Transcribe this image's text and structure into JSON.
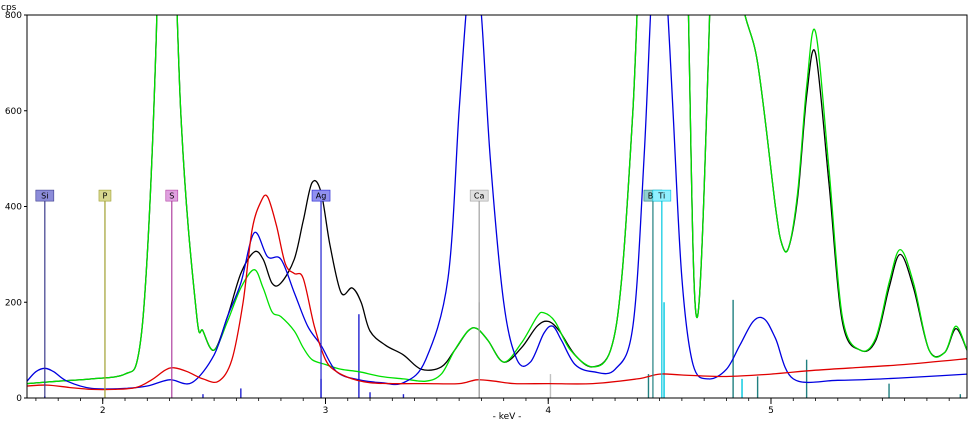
{
  "chart_data": {
    "type": "line",
    "y_unit": "cps",
    "x_unit": "- keV -",
    "xlim": [
      1.66,
      5.88
    ],
    "ylim": [
      0,
      800
    ],
    "x_ticks": [
      2,
      3,
      4,
      5
    ],
    "x_tick_labels": [
      "2",
      "3",
      "4",
      "5"
    ],
    "y_ticks": [
      0,
      200,
      400,
      600,
      800
    ],
    "y_tick_labels": [
      "0",
      "200",
      "400",
      "600",
      "800"
    ],
    "grid": false,
    "element_markers": [
      {
        "symbol": "Si",
        "energy": 1.74,
        "height": 405,
        "color": "#3b3b8c",
        "label_bg": "#8c8cd9"
      },
      {
        "symbol": "P",
        "energy": 2.01,
        "height": 405,
        "color": "#a0a030",
        "label_bg": "#d8d890"
      },
      {
        "symbol": "S",
        "energy": 2.31,
        "height": 405,
        "color": "#b040a0",
        "label_bg": "#e0a0e0"
      },
      {
        "symbol": "Ag",
        "energy": 2.98,
        "height": 405,
        "color": "#2020d0",
        "label_bg": "#9090f0"
      },
      {
        "symbol": "Ca",
        "energy": 3.69,
        "height": 405,
        "color": "#a0a0a0",
        "label_bg": "#e0e0e0"
      },
      {
        "symbol": "Ba",
        "energy": 4.47,
        "height": 405,
        "color": "#208080",
        "label_bg": "#90d0d0"
      },
      {
        "symbol": "Ti",
        "energy": 4.51,
        "height": 405,
        "color": "#00c8e0",
        "label_bg": "#90f0ff"
      }
    ],
    "sticks": [
      {
        "energy": 1.74,
        "height": 4,
        "color": "#2020d0"
      },
      {
        "energy": 2.45,
        "height": 8,
        "color": "#2020d0"
      },
      {
        "energy": 2.62,
        "height": 20,
        "color": "#2020d0"
      },
      {
        "energy": 2.98,
        "height": 40,
        "color": "#2020d0"
      },
      {
        "energy": 3.15,
        "height": 175,
        "color": "#2020d0"
      },
      {
        "energy": 3.2,
        "height": 12,
        "color": "#2020d0"
      },
      {
        "energy": 3.35,
        "height": 8,
        "color": "#2020d0"
      },
      {
        "energy": 3.69,
        "height": 200,
        "color": "#c0c0c0"
      },
      {
        "energy": 4.01,
        "height": 50,
        "color": "#c0c0c0"
      },
      {
        "energy": 4.45,
        "height": 50,
        "color": "#208080"
      },
      {
        "energy": 4.52,
        "height": 200,
        "color": "#00c8e0"
      },
      {
        "energy": 4.83,
        "height": 205,
        "color": "#208080"
      },
      {
        "energy": 4.87,
        "height": 40,
        "color": "#00c8e0"
      },
      {
        "energy": 4.94,
        "height": 45,
        "color": "#208080"
      },
      {
        "energy": 5.16,
        "height": 80,
        "color": "#208080"
      },
      {
        "energy": 5.53,
        "height": 30,
        "color": "#208080"
      },
      {
        "energy": 5.85,
        "height": 8,
        "color": "#208080"
      }
    ],
    "series": [
      {
        "color": "#000000",
        "x": [
          1.66,
          1.8,
          1.95,
          2.1,
          2.16,
          2.2,
          2.24,
          2.28,
          2.35,
          2.42,
          2.45,
          2.5,
          2.56,
          2.62,
          2.68,
          2.72,
          2.76,
          2.8,
          2.86,
          2.9,
          2.94,
          2.98,
          3.02,
          3.07,
          3.12,
          3.16,
          3.2,
          3.27,
          3.35,
          3.43,
          3.52,
          3.58,
          3.64,
          3.68,
          3.73,
          3.8,
          3.88,
          3.95,
          4.0,
          4.05,
          4.12,
          4.2,
          4.28,
          4.33,
          4.38,
          4.45,
          4.6,
          4.67,
          4.78,
          4.85,
          4.94,
          5.02,
          5.05,
          5.08,
          5.12,
          5.16,
          5.2,
          5.26,
          5.32,
          5.4,
          5.47,
          5.53,
          5.58,
          5.64,
          5.71,
          5.78,
          5.83,
          5.88
        ],
        "y": [
          30,
          35,
          40,
          50,
          90,
          300,
          750,
          1500,
          600,
          180,
          140,
          100,
          170,
          260,
          305,
          290,
          240,
          240,
          290,
          370,
          450,
          430,
          320,
          220,
          230,
          200,
          140,
          110,
          90,
          60,
          65,
          100,
          140,
          145,
          120,
          75,
          105,
          150,
          160,
          140,
          90,
          65,
          100,
          250,
          600,
          1200,
          1200,
          170,
          1500,
          900,
          700,
          400,
          320,
          315,
          420,
          630,
          720,
          450,
          160,
          100,
          120,
          230,
          300,
          230,
          100,
          95,
          145,
          100
        ]
      },
      {
        "color": "#00e000",
        "x": [
          1.66,
          1.8,
          1.95,
          2.1,
          2.16,
          2.2,
          2.24,
          2.28,
          2.35,
          2.42,
          2.45,
          2.5,
          2.56,
          2.62,
          2.68,
          2.72,
          2.76,
          2.8,
          2.86,
          2.9,
          2.94,
          3.0,
          3.07,
          3.15,
          3.25,
          3.35,
          3.45,
          3.52,
          3.58,
          3.64,
          3.68,
          3.73,
          3.8,
          3.88,
          3.95,
          3.98,
          4.03,
          4.1,
          4.2,
          4.28,
          4.33,
          4.38,
          4.45,
          4.6,
          4.67,
          4.78,
          4.85,
          4.94,
          5.02,
          5.05,
          5.08,
          5.12,
          5.16,
          5.2,
          5.26,
          5.32,
          5.4,
          5.47,
          5.53,
          5.58,
          5.64,
          5.71,
          5.78,
          5.83,
          5.88
        ],
        "y": [
          30,
          35,
          40,
          50,
          90,
          300,
          750,
          1500,
          600,
          180,
          140,
          100,
          160,
          230,
          268,
          230,
          180,
          170,
          140,
          105,
          80,
          70,
          60,
          55,
          45,
          40,
          35,
          50,
          100,
          140,
          145,
          120,
          75,
          115,
          170,
          178,
          160,
          100,
          65,
          100,
          250,
          600,
          1200,
          1200,
          170,
          1500,
          900,
          700,
          400,
          320,
          315,
          430,
          650,
          765,
          480,
          170,
          100,
          125,
          240,
          310,
          240,
          100,
          95,
          150,
          100
        ]
      },
      {
        "color": "#0000e0",
        "x": [
          1.66,
          1.7,
          1.74,
          1.78,
          1.84,
          1.95,
          2.1,
          2.2,
          2.3,
          2.4,
          2.5,
          2.56,
          2.62,
          2.68,
          2.74,
          2.8,
          2.86,
          2.92,
          2.98,
          3.05,
          3.15,
          3.25,
          3.35,
          3.45,
          3.55,
          3.6,
          3.64,
          3.67,
          3.7,
          3.74,
          3.8,
          3.86,
          3.92,
          3.98,
          4.02,
          4.06,
          4.12,
          4.2,
          4.3,
          4.38,
          4.43,
          4.47,
          4.5,
          4.52,
          4.56,
          4.6,
          4.65,
          4.72,
          4.8,
          4.86,
          4.92,
          4.97,
          5.02,
          5.1,
          5.3,
          5.5,
          5.7,
          5.88
        ],
        "y": [
          35,
          55,
          62,
          55,
          35,
          20,
          20,
          25,
          38,
          32,
          90,
          170,
          240,
          345,
          295,
          290,
          220,
          150,
          110,
          55,
          38,
          32,
          32,
          80,
          250,
          600,
          850,
          900,
          800,
          500,
          200,
          80,
          75,
          135,
          150,
          120,
          70,
          55,
          60,
          150,
          500,
          900,
          1000,
          950,
          600,
          250,
          70,
          40,
          60,
          110,
          160,
          165,
          125,
          40,
          37,
          40,
          45,
          50
        ]
      },
      {
        "color": "#e00000",
        "x": [
          1.66,
          1.75,
          1.85,
          1.95,
          2.05,
          2.15,
          2.22,
          2.28,
          2.32,
          2.38,
          2.45,
          2.52,
          2.58,
          2.63,
          2.67,
          2.71,
          2.74,
          2.78,
          2.82,
          2.86,
          2.9,
          2.95,
          3.0,
          3.05,
          3.12,
          3.2,
          3.3,
          3.45,
          3.6,
          3.68,
          3.76,
          3.85,
          4.0,
          4.2,
          4.4,
          4.5,
          4.6,
          4.8,
          5.0,
          5.2,
          5.4,
          5.6,
          5.88
        ],
        "y": [
          25,
          27,
          22,
          18,
          18,
          22,
          38,
          58,
          63,
          55,
          40,
          35,
          80,
          200,
          350,
          410,
          420,
          360,
          280,
          260,
          250,
          150,
          80,
          55,
          40,
          32,
          30,
          30,
          30,
          38,
          35,
          30,
          30,
          30,
          40,
          50,
          48,
          45,
          50,
          58,
          64,
          70,
          82
        ]
      }
    ]
  }
}
